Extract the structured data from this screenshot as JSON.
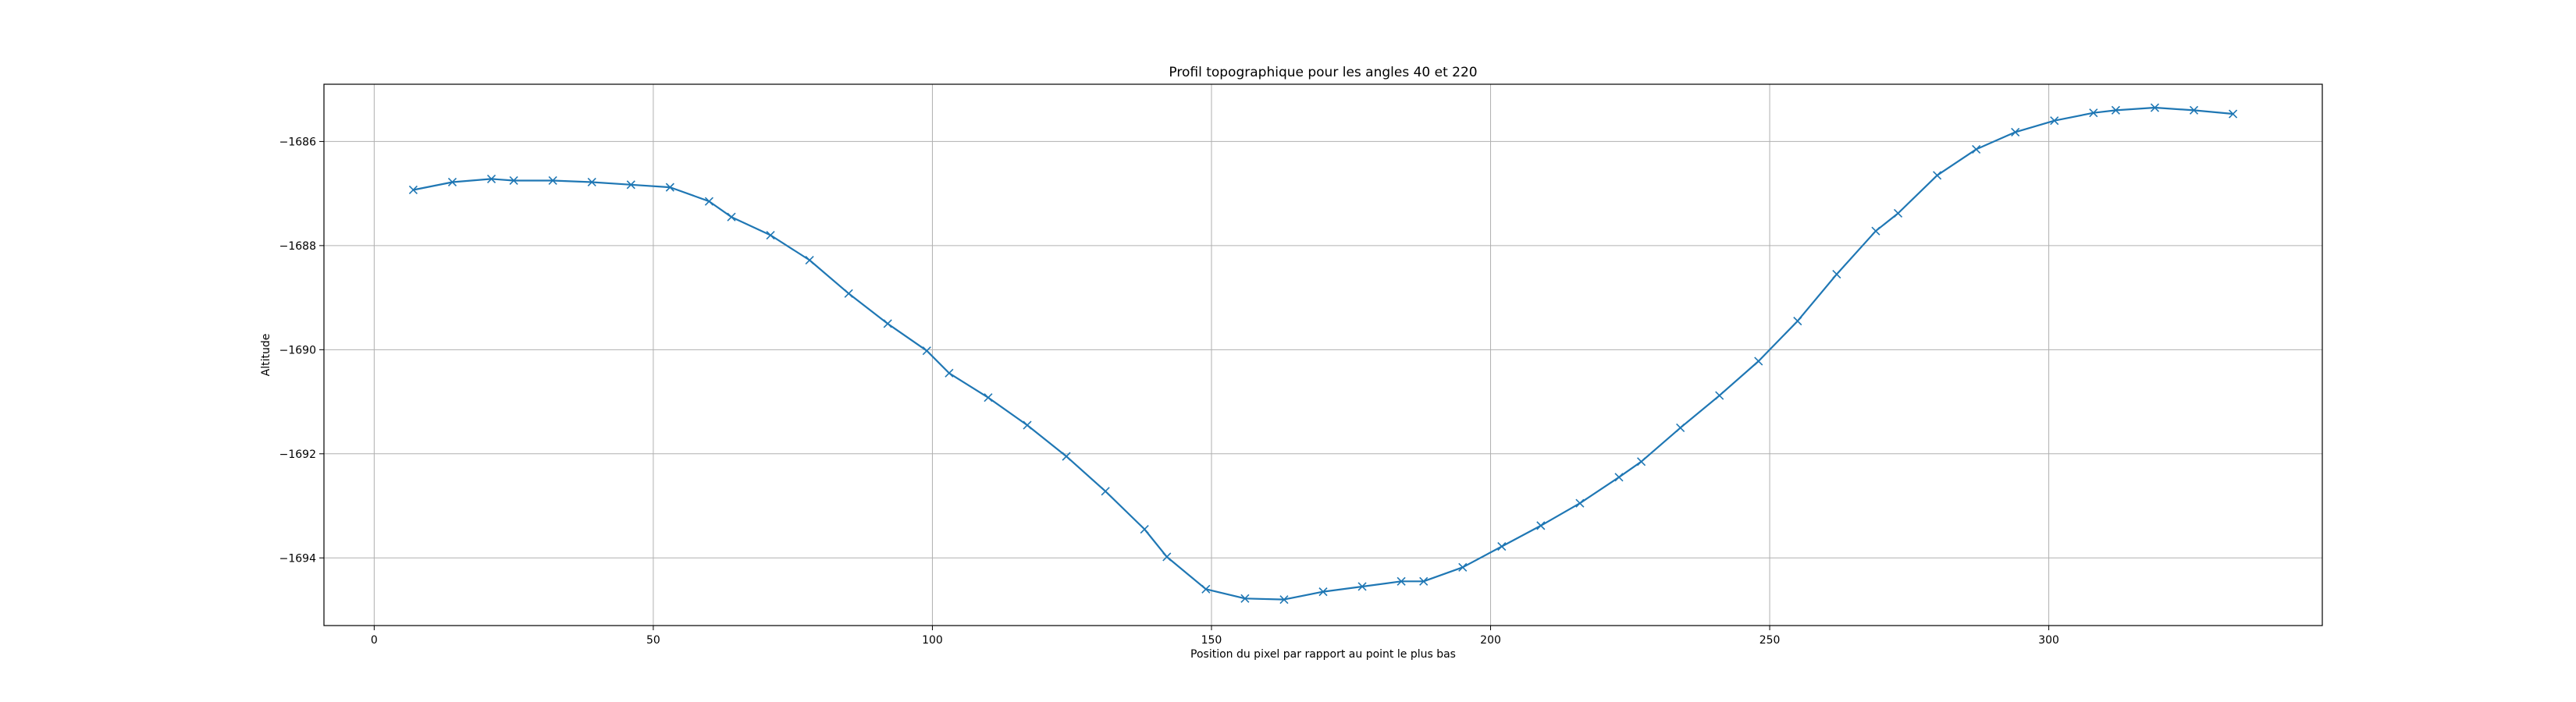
{
  "chart_data": {
    "type": "line",
    "title": "Profil topographique pour les angles 40 et 220",
    "xlabel": "Position du pixel par rapport au point le plus bas",
    "ylabel": "Altitude",
    "xlim": [
      -9,
      349
    ],
    "ylim": [
      -1695.3,
      -1684.9
    ],
    "xticks": [
      0,
      50,
      100,
      150,
      200,
      250,
      300
    ],
    "xtick_labels": [
      "0",
      "50",
      "100",
      "150",
      "200",
      "250",
      "300"
    ],
    "yticks": [
      -1686,
      -1688,
      -1690,
      -1692,
      -1694
    ],
    "ytick_labels": [
      "−1686",
      "−1688",
      "−1690",
      "−1692",
      "−1694"
    ],
    "grid": true,
    "series": [
      {
        "name": "profil",
        "color": "#1f77b4",
        "marker": "x",
        "x": [
          7,
          14,
          21,
          25,
          32,
          39,
          46,
          53,
          60,
          64,
          71,
          78,
          85,
          92,
          99,
          103,
          110,
          117,
          124,
          131,
          138,
          142,
          149,
          156,
          163,
          170,
          177,
          184,
          188,
          195,
          202,
          209,
          216,
          223,
          227,
          234,
          241,
          248,
          255,
          262,
          269,
          273,
          280,
          287,
          294,
          301,
          308,
          312,
          319,
          326,
          333
        ],
        "y": [
          -1686.93,
          -1686.78,
          -1686.72,
          -1686.75,
          -1686.75,
          -1686.78,
          -1686.83,
          -1686.88,
          -1687.15,
          -1687.45,
          -1687.8,
          -1688.28,
          -1688.92,
          -1689.5,
          -1690.02,
          -1690.45,
          -1690.92,
          -1691.45,
          -1692.05,
          -1692.72,
          -1693.45,
          -1693.98,
          -1694.6,
          -1694.78,
          -1694.8,
          -1694.65,
          -1694.55,
          -1694.45,
          -1694.45,
          -1694.18,
          -1693.78,
          -1693.38,
          -1692.95,
          -1692.45,
          -1692.15,
          -1691.5,
          -1690.88,
          -1690.22,
          -1689.45,
          -1688.55,
          -1687.72,
          -1687.38,
          -1686.65,
          -1686.15,
          -1685.82,
          -1685.6,
          -1685.45,
          -1685.4,
          -1685.35,
          -1685.4,
          -1685.47
        ]
      }
    ]
  }
}
